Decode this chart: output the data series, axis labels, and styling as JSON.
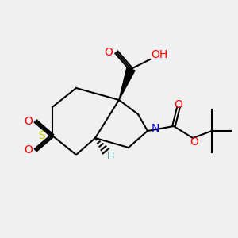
{
  "background_color": "#f0f0f0",
  "atom_colors": {
    "O": "#ff0000",
    "S": "#cccc00",
    "N": "#0000cc",
    "C": "#000000",
    "H": "#408080"
  },
  "bond_color": "#000000",
  "title": ""
}
